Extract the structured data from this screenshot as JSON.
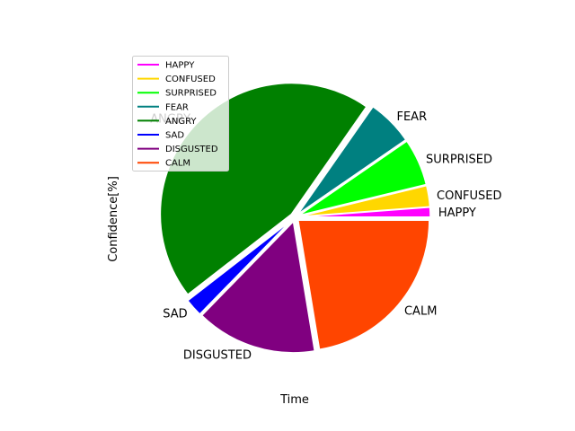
{
  "chart_data": {
    "type": "pie",
    "xlabel": "Time",
    "ylabel": "Confidence[%]",
    "legend_placement": "upper-left",
    "slices": [
      {
        "label": "HAPPY",
        "value": 1.2,
        "color": "#ff00ff"
      },
      {
        "label": "CONFUSED",
        "value": 2.6,
        "color": "#ffd700"
      },
      {
        "label": "SURPRISED",
        "value": 5.8,
        "color": "#00ff00"
      },
      {
        "label": "FEAR",
        "value": 5.7,
        "color": "#008080"
      },
      {
        "label": "ANGRY",
        "value": 45.2,
        "color": "#008000"
      },
      {
        "label": "SAD",
        "value": 2.2,
        "color": "#0000ff"
      },
      {
        "label": "DISGUSTED",
        "value": 14.9,
        "color": "#800080"
      },
      {
        "label": "CALM",
        "value": 22.4,
        "color": "#ff4500"
      }
    ]
  }
}
